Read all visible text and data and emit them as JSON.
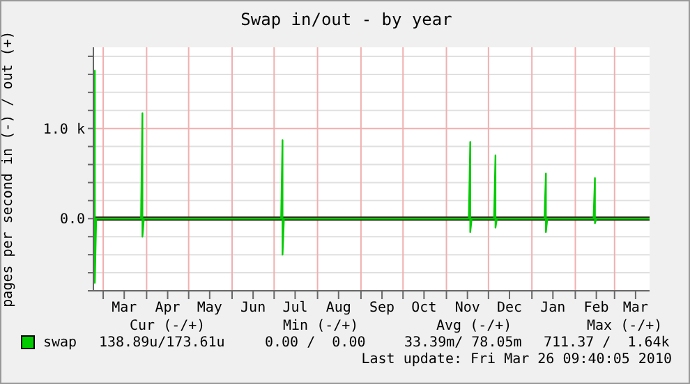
{
  "chart_data": {
    "type": "line",
    "title": "Swap in/out - by year",
    "ylabel": "pages per second in (-) / out (+)",
    "xlim": [
      "2009-02-22",
      "2010-03-26"
    ],
    "xticks": [
      {
        "value": "2009-03-01",
        "label": null
      },
      {
        "value": "2009-03-16",
        "label": "Mar"
      },
      {
        "value": "2009-04-01",
        "label": null
      },
      {
        "value": "2009-04-16",
        "label": "Apr"
      },
      {
        "value": "2009-05-01",
        "label": null
      },
      {
        "value": "2009-05-16",
        "label": "May"
      },
      {
        "value": "2009-06-01",
        "label": null
      },
      {
        "value": "2009-06-16",
        "label": "Jun"
      },
      {
        "value": "2009-07-01",
        "label": null
      },
      {
        "value": "2009-07-16",
        "label": "Jul"
      },
      {
        "value": "2009-08-01",
        "label": null
      },
      {
        "value": "2009-08-16",
        "label": "Aug"
      },
      {
        "value": "2009-09-01",
        "label": null
      },
      {
        "value": "2009-09-16",
        "label": "Sep"
      },
      {
        "value": "2009-10-01",
        "label": null
      },
      {
        "value": "2009-10-16",
        "label": "Oct"
      },
      {
        "value": "2009-11-01",
        "label": null
      },
      {
        "value": "2009-11-16",
        "label": "Nov"
      },
      {
        "value": "2009-12-01",
        "label": null
      },
      {
        "value": "2009-12-16",
        "label": "Dec"
      },
      {
        "value": "2010-01-01",
        "label": null
      },
      {
        "value": "2010-01-16",
        "label": "Jan"
      },
      {
        "value": "2010-02-01",
        "label": null
      },
      {
        "value": "2010-02-16",
        "label": "Feb"
      },
      {
        "value": "2010-03-01",
        "label": null
      },
      {
        "value": "2010-03-16",
        "label": "Mar"
      }
    ],
    "ylim": [
      -800,
      1900
    ],
    "yticks": [
      {
        "value": -800,
        "label": null
      },
      {
        "value": -600,
        "label": null
      },
      {
        "value": -400,
        "label": null
      },
      {
        "value": -200,
        "label": null
      },
      {
        "value": 0,
        "label": "0.0"
      },
      {
        "value": 200,
        "label": null
      },
      {
        "value": 400,
        "label": null
      },
      {
        "value": 600,
        "label": null
      },
      {
        "value": 800,
        "label": null
      },
      {
        "value": 1000,
        "label": "1.0 k"
      },
      {
        "value": 1200,
        "label": null
      },
      {
        "value": 1400,
        "label": null
      },
      {
        "value": 1600,
        "label": null
      },
      {
        "value": 1800,
        "label": null
      }
    ],
    "grid": true,
    "legend": "bottom",
    "ref_lines": [
      {
        "axis": "y",
        "value": 0,
        "color": "#2a2a1a"
      }
    ],
    "series": [
      {
        "name": "swap",
        "color": "#00cc00",
        "x": [
          "2009-02-22",
          "2009-02-23",
          "2009-02-23",
          "2009-02-24",
          "2009-03-28",
          "2009-03-29",
          "2009-03-29",
          "2009-03-30",
          "2009-07-06",
          "2009-07-07",
          "2009-07-07",
          "2009-07-08",
          "2009-11-17",
          "2009-11-18",
          "2009-11-18",
          "2009-11-19",
          "2009-12-05",
          "2009-12-06",
          "2009-12-06",
          "2009-12-07",
          "2010-01-10",
          "2010-01-11",
          "2010-01-11",
          "2010-01-12",
          "2010-02-14",
          "2010-02-15",
          "2010-02-15",
          "2010-02-16",
          "2010-03-26"
        ],
        "values": [
          0,
          1640,
          -711,
          0,
          0,
          1170,
          -200,
          0,
          0,
          870,
          -400,
          0,
          0,
          850,
          -150,
          0,
          0,
          700,
          -100,
          0,
          0,
          500,
          -150,
          0,
          0,
          450,
          -50,
          0,
          0
        ]
      }
    ],
    "annotations": [
      "Cur (-/+)",
      "Min (-/+)",
      "Avg (-/+)",
      "Max (-/+)",
      "138.89u/173.61u",
      "0.00 /  0.00",
      "33.39m/ 78.05m",
      "711.37 /  1.64k",
      "Last update: Fri Mar 26 09:40:05 2010"
    ]
  }
}
